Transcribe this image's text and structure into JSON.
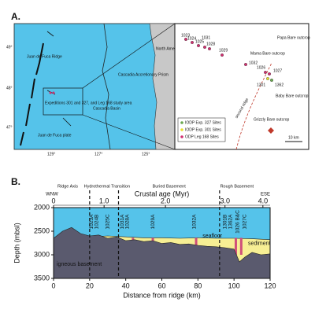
{
  "panel_a": {
    "label": "A.",
    "map": {
      "ridge": "Juan de Fuca Ridge",
      "plate": "Juan de Fuca plate",
      "basin": "Cascadia Basin",
      "prism": "Cascadia Accretionary Prism",
      "na_plate": "North American plate",
      "study_area": "Expeditions 301 and 327, and Leg 168 study area",
      "lat": [
        "49°",
        "48°",
        "47°"
      ],
      "lon": [
        "129°",
        "127°",
        "125°"
      ]
    },
    "inset": {
      "sites": [
        "1023",
        "1024",
        "1025",
        "1031",
        "1028",
        "1029",
        "1032",
        "1026",
        "1027",
        "1301",
        "1362"
      ],
      "outcrops": [
        "Papa Bare outcrop",
        "Mama Bare outcrop",
        "Baby Bare outcrop",
        "Grizzly Bare outcrop"
      ],
      "ridge": "second ridge",
      "legend": [
        "IODP Exp. 327 Sites",
        "IODP Exp. 301 Sites",
        "ODP Leg 168 Sites"
      ],
      "scale": "10 km"
    }
  },
  "panel_b": {
    "label": "B.",
    "chart_data": {
      "type": "profile",
      "x_label": "Distance from ridge (km)",
      "y_label": "Depth (mbsl)",
      "age_label": "Crustal age (Myr)",
      "xlim": [
        0,
        120
      ],
      "xticks": [
        0,
        20,
        40,
        60,
        80,
        100,
        120
      ],
      "ylim": [
        3500,
        2000
      ],
      "yticks": [
        2000,
        2500,
        3000,
        3500
      ],
      "age_ticks": [
        0,
        {
          "value": 1,
          "label": "1.0"
        },
        {
          "value": 2,
          "label": "2.0"
        },
        {
          "value": 3,
          "label": "3.0"
        },
        {
          "value": 4,
          "label": "4.0"
        }
      ],
      "age_ticks_km": [
        0,
        28,
        62,
        95,
        116
      ],
      "zones": [
        "Ridge Axis",
        "Hydrothermal Transition",
        "Buried Basement",
        "Rough Basement"
      ],
      "directions": [
        "WNW",
        "ESE"
      ],
      "annotations": {
        "seafloor": "seafloor",
        "sediment": "sediment",
        "basement": "igneous basement"
      },
      "boundaries_km": [
        20,
        36,
        92
      ],
      "basement": {
        "x": [
          0,
          5,
          10,
          15,
          20,
          25,
          30,
          35,
          40,
          45,
          50,
          55,
          60,
          65,
          70,
          75,
          80,
          85,
          90,
          95,
          100,
          103,
          106,
          110,
          115,
          120
        ],
        "values": [
          2650,
          2500,
          2420,
          2550,
          2600,
          2580,
          2650,
          2620,
          2700,
          2680,
          2720,
          2700,
          2760,
          2740,
          2780,
          2770,
          2800,
          2820,
          2830,
          2850,
          2880,
          3150,
          3050,
          2950,
          3000,
          2980
        ]
      },
      "seafloor": {
        "x": [
          20,
          30,
          40,
          50,
          60,
          70,
          80,
          90,
          100,
          110,
          120
        ],
        "values": [
          2620,
          2600,
          2620,
          2640,
          2640,
          2650,
          2640,
          2650,
          2650,
          2660,
          2680
        ]
      },
      "outcrops_km": [
        26,
        33,
        44,
        55,
        79,
        101,
        104
      ],
      "sites": [
        {
          "label": "1023A",
          "km": 21
        },
        {
          "label": "1024B",
          "km": 24
        },
        {
          "label": "1025C",
          "km": 30
        },
        {
          "label": "1031A",
          "km": 38
        },
        {
          "label": "1028A",
          "km": 41
        },
        {
          "label": "1029A",
          "km": 55
        },
        {
          "label": "1032A",
          "km": 78
        },
        {
          "label": "1301B",
          "km": 95
        },
        {
          "label": "1362A",
          "km": 98
        },
        {
          "label": "1026 B&C",
          "km": 102
        },
        {
          "label": "1027C",
          "km": 106
        }
      ]
    }
  }
}
